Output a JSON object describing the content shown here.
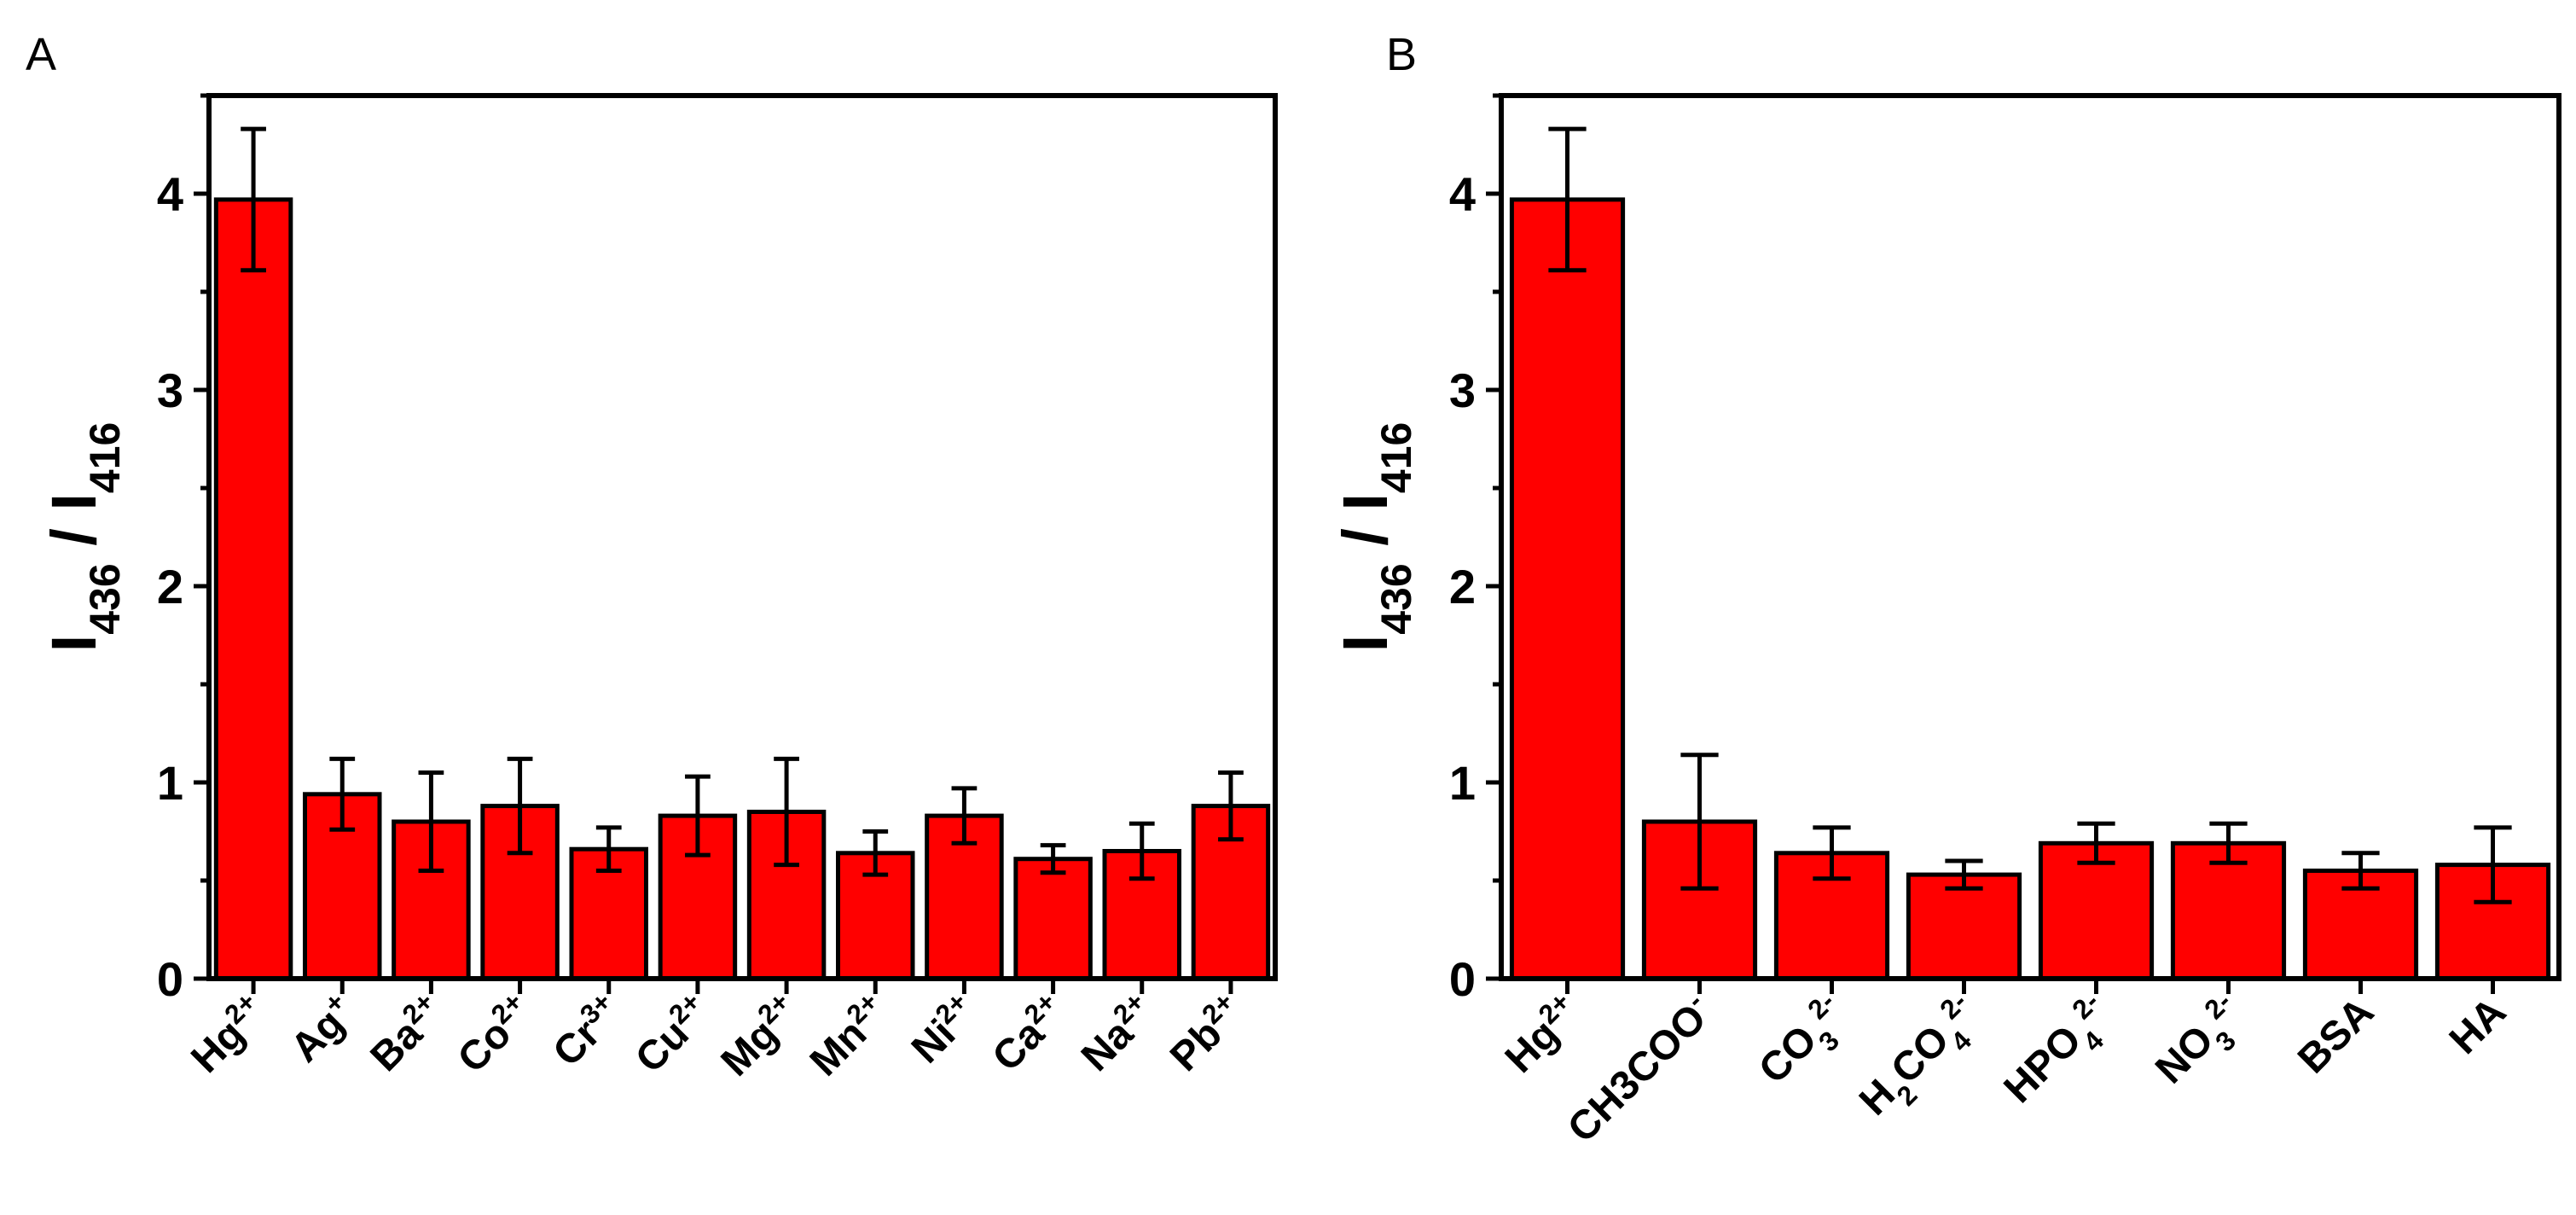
{
  "chart_data": [
    {
      "type": "bar",
      "panel_label": "A",
      "ylabel": {
        "main1": "I",
        "sub1": "436",
        "sep": " / ",
        "main2": "I",
        "sub2": "416"
      },
      "ylim": [
        0,
        4.5
      ],
      "yticks": [
        0,
        1,
        2,
        3,
        4
      ],
      "categories": [
        {
          "base": "Hg",
          "sup": "2+"
        },
        {
          "base": "Ag",
          "sup": "+"
        },
        {
          "base": "Ba",
          "sup": "2+"
        },
        {
          "base": "Co",
          "sup": "2+"
        },
        {
          "base": "Cr",
          "sup": "3+"
        },
        {
          "base": "Cu",
          "sup": "2+"
        },
        {
          "base": "Mg",
          "sup": "2+"
        },
        {
          "base": "Mn",
          "sup": "2+"
        },
        {
          "base": "Ni",
          "sup": "2+"
        },
        {
          "base": "Ca",
          "sup": "2+"
        },
        {
          "base": "Na",
          "sup": "2+"
        },
        {
          "base": "Pb",
          "sup": "2+"
        }
      ],
      "values": [
        3.97,
        0.94,
        0.8,
        0.88,
        0.66,
        0.83,
        0.85,
        0.64,
        0.83,
        0.61,
        0.65,
        0.88
      ],
      "errors": [
        0.36,
        0.18,
        0.25,
        0.24,
        0.11,
        0.2,
        0.27,
        0.11,
        0.14,
        0.07,
        0.14,
        0.17
      ]
    },
    {
      "type": "bar",
      "panel_label": "B",
      "ylabel": {
        "main1": "I",
        "sub1": "436",
        "sep": " / ",
        "main2": "I",
        "sub2": "416"
      },
      "ylim": [
        0,
        4.5
      ],
      "yticks": [
        0,
        1,
        2,
        3,
        4
      ],
      "categories": [
        {
          "base": "Hg",
          "sup": "2+"
        },
        {
          "base": "CH3COO",
          "sup": "-"
        },
        {
          "base": "CO",
          "sub": "3",
          "sup": "2-"
        },
        {
          "base": "H",
          "sub": "2",
          "base2": "CO",
          "sub2": "4",
          "sup": "2-"
        },
        {
          "base": "HPO",
          "sub": "4",
          "sup": "2-"
        },
        {
          "base": "NO",
          "sub": "3",
          "sup": "2-"
        },
        {
          "base": "BSA"
        },
        {
          "base": "HA"
        }
      ],
      "values": [
        3.97,
        0.8,
        0.64,
        0.53,
        0.69,
        0.69,
        0.55,
        0.58
      ],
      "errors": [
        0.36,
        0.34,
        0.13,
        0.07,
        0.1,
        0.1,
        0.09,
        0.19
      ]
    }
  ]
}
